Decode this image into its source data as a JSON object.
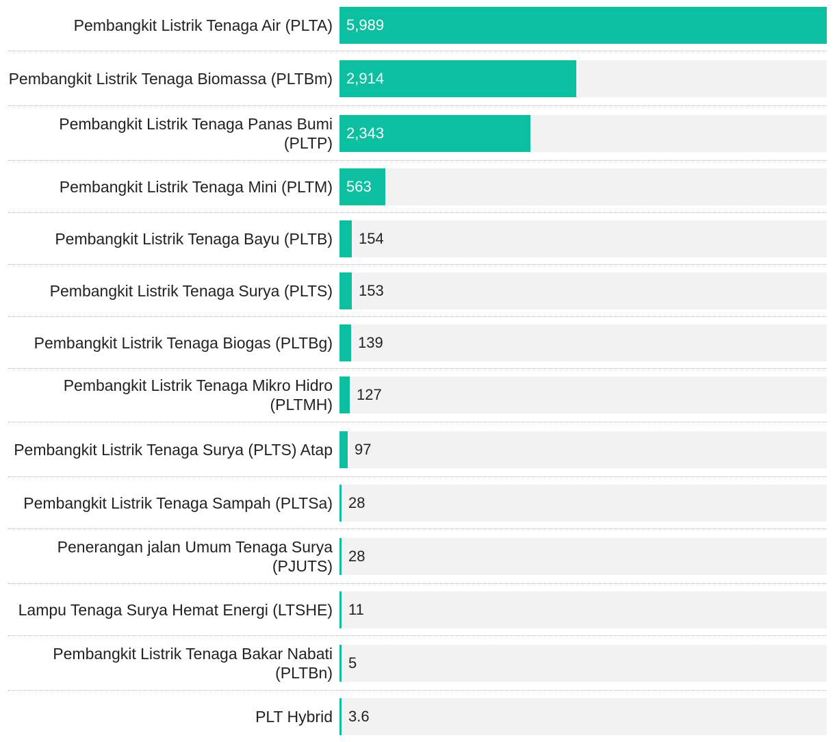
{
  "chart_data": {
    "type": "bar",
    "orientation": "horizontal",
    "title": "",
    "xlabel": "",
    "ylabel": "",
    "xlim": [
      0,
      5989
    ],
    "grid": false,
    "legend": "none",
    "bar_color": "#0bbfa0",
    "track_color": "#f2f2f2",
    "categories": [
      "Pembangkit Listrik Tenaga Air (PLTA)",
      "Pembangkit Listrik Tenaga Biomassa (PLTBm)",
      "Pembangkit Listrik Tenaga Panas Bumi (PLTP)",
      "Pembangkit Listrik Tenaga Mini (PLTM)",
      "Pembangkit Listrik Tenaga Bayu (PLTB)",
      "Pembangkit Listrik Tenaga Surya (PLTS)",
      "Pembangkit Listrik Tenaga Biogas (PLTBg)",
      "Pembangkit Listrik Tenaga Mikro Hidro (PLTMH)",
      "Pembangkit Listrik Tenaga Surya (PLTS) Atap",
      "Pembangkit Listrik Tenaga Sampah (PLTSa)",
      "Penerangan jalan Umum Tenaga Surya (PJUTS)",
      "Lampu Tenaga Surya Hemat Energi (LTSHE)",
      "Pembangkit Listrik Tenaga Bakar Nabati (PLTBn)",
      "PLT Hybrid"
    ],
    "values": [
      5989,
      2914,
      2343,
      563,
      154,
      153,
      139,
      127,
      97,
      28,
      28,
      11,
      5,
      3.6
    ],
    "value_labels": [
      "5,989",
      "2,914",
      "2,343",
      "563",
      "154",
      "153",
      "139",
      "127",
      "97",
      "28",
      "28",
      "11",
      "5",
      "3.6"
    ]
  }
}
